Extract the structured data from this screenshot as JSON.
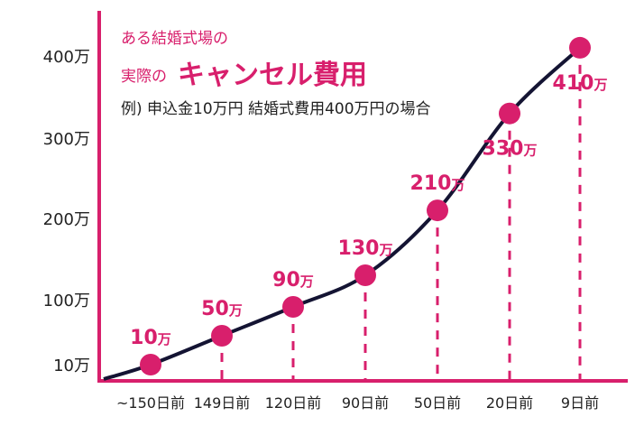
{
  "chart_data": {
    "type": "line",
    "title_line1": "ある結婚式場の",
    "title_line2_prefix": "実際の",
    "title_line2_main": "キャンセル費用",
    "subtitle": "例) 申込金10万円 結婚式費用400万円の場合",
    "categories": [
      "~150日前",
      "149日前",
      "120日前",
      "90日前",
      "50日前",
      "20日前",
      "9日前"
    ],
    "values": [
      10,
      50,
      90,
      130,
      210,
      330,
      410
    ],
    "data_labels": [
      "10",
      "50",
      "90",
      "130",
      "210",
      "330",
      "410"
    ],
    "unit": "万",
    "y_ticks": [
      {
        "value": 10,
        "label": "10万"
      },
      {
        "value": 100,
        "label": "100万"
      },
      {
        "value": 200,
        "label": "200万"
      },
      {
        "value": 300,
        "label": "300万"
      },
      {
        "value": 400,
        "label": "400万"
      }
    ],
    "grid": false,
    "colors": {
      "accent": "#d81f6c",
      "line": "#141433",
      "text": "#222222"
    }
  }
}
